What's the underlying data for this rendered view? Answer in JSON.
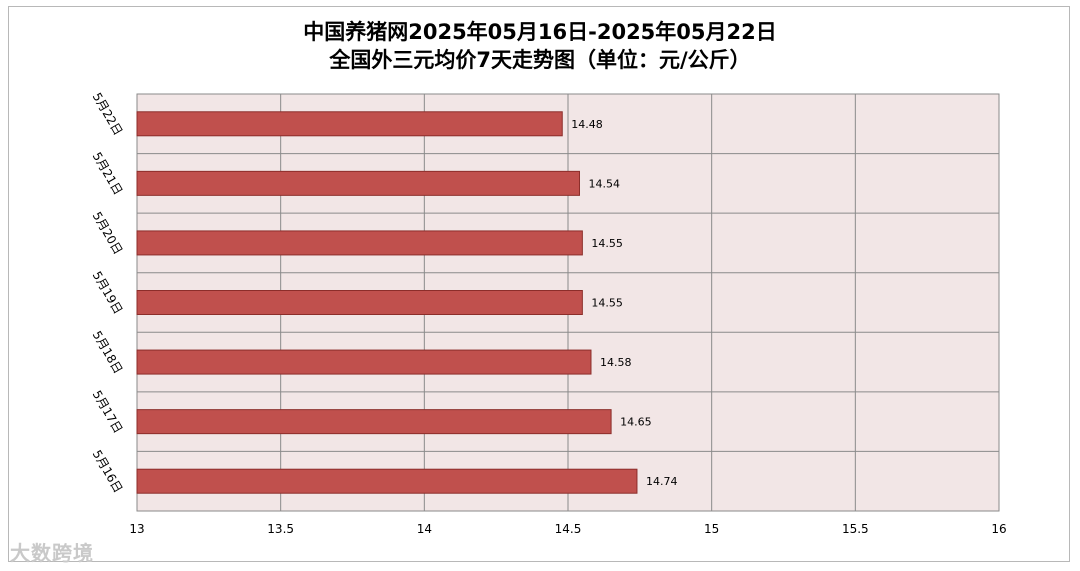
{
  "title_line1": "中国养猪网2025年05月16日-2025年05月22日",
  "title_line2": "全国外三元均价7天走势图（单位：元/公斤）",
  "watermark": "大数跨境",
  "colors": {
    "bar_fill": "#c0504d",
    "bar_stroke": "#8c2d2a",
    "plot_bg": "#f2e6e6",
    "grid": "#8a8a8a"
  },
  "chart_data": {
    "type": "bar",
    "orientation": "horizontal",
    "title": "中国养猪网2025年05月16日-2025年05月22日 全国外三元均价7天走势图（单位：元/公斤）",
    "categories": [
      "5月22日",
      "5月21日",
      "5月20日",
      "5月19日",
      "5月18日",
      "5月17日",
      "5月16日"
    ],
    "values": [
      14.48,
      14.54,
      14.55,
      14.55,
      14.58,
      14.65,
      14.74
    ],
    "value_labels": [
      "14.48",
      "14.54",
      "14.55",
      "14.55",
      "14.58",
      "14.65",
      "14.74"
    ],
    "xlim": [
      13,
      16
    ],
    "xticks": [
      13,
      13.5,
      14,
      14.5,
      15,
      15.5,
      16
    ],
    "xtick_labels": [
      "13",
      "13.5",
      "14",
      "14.5",
      "15",
      "15.5",
      "16"
    ],
    "grid": true,
    "legend": "none"
  }
}
